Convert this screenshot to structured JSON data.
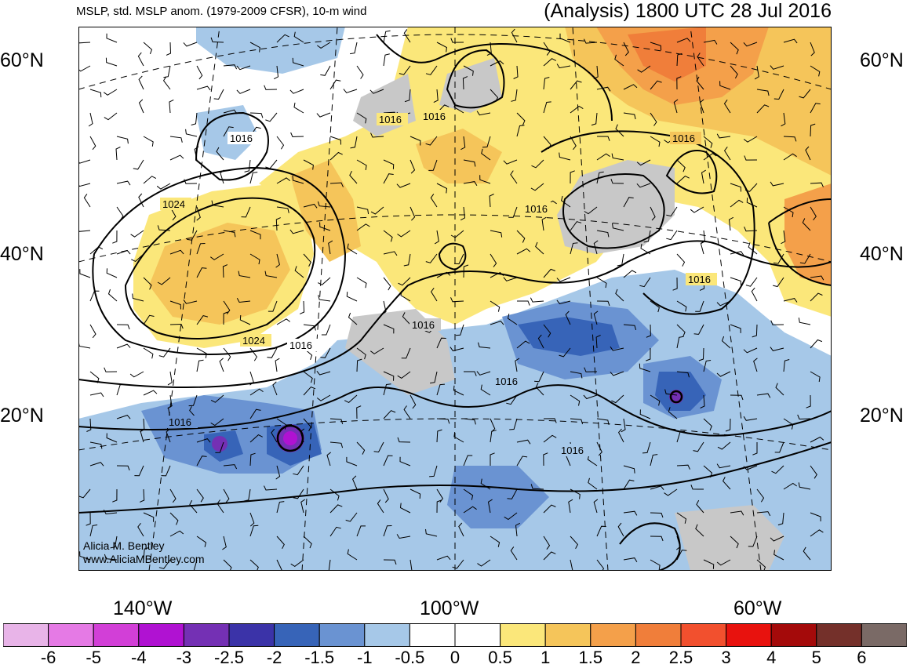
{
  "header": {
    "left": "MSLP, std. MSLP anom. (1979-2009 CFSR), 10-m wind",
    "right": "(Analysis) 1800 UTC 28 Jul 2016"
  },
  "latitudes": {
    "lat60": "60°N",
    "lat40": "40°N",
    "lat20": "20°N"
  },
  "longitudes": {
    "lon140": "140°W",
    "lon100": "100°W",
    "lon60": "60°W"
  },
  "credit": {
    "name": "Alicia M. Bentley",
    "url": "www.AliciaMBentley.com"
  },
  "isobars": {
    "i1016": "1016",
    "i1024": "1024"
  },
  "colorbar": {
    "colors": [
      "#e8b4e8",
      "#e57ae5",
      "#d23fd7",
      "#b012d2",
      "#7430b4",
      "#3b33a8",
      "#3764b8",
      "#6a93d2",
      "#a6c8e8",
      "#ffffff",
      "#ffffff",
      "#fbe77a",
      "#f5c55a",
      "#f4a04a",
      "#f07e3a",
      "#f2502e",
      "#e8120e",
      "#a40a0a",
      "#74302a",
      "#7a6a66"
    ],
    "labels": [
      "-6",
      "-5",
      "-4",
      "-3",
      "-2.5",
      "-2",
      "-1.5",
      "-1",
      "-0.5",
      "0",
      "0.5",
      "1",
      "1.5",
      "2",
      "2.5",
      "3",
      "4",
      "5",
      "6"
    ]
  }
}
